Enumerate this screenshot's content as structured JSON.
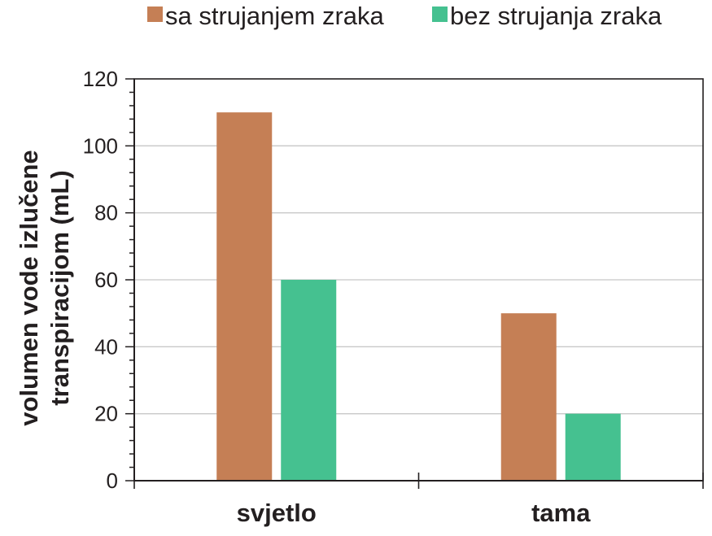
{
  "chart_data": {
    "type": "bar",
    "categories": [
      "svjetlo",
      "tama"
    ],
    "series": [
      {
        "name": "sa strujanjem zraka",
        "values": [
          110,
          50
        ],
        "color": "#c57f55"
      },
      {
        "name": "bez strujanja zraka",
        "values": [
          60,
          20
        ],
        "color": "#45c190"
      }
    ],
    "title": "",
    "xlabel": "",
    "ylabel": [
      "volumen vode izlučene",
      "transpiracijom (mL)"
    ],
    "ylim": [
      0,
      120
    ],
    "yticks": [
      0,
      20,
      40,
      60,
      80,
      100,
      120
    ],
    "grid": true,
    "grid_color": "#c8c8c8",
    "legend_position": "top"
  }
}
